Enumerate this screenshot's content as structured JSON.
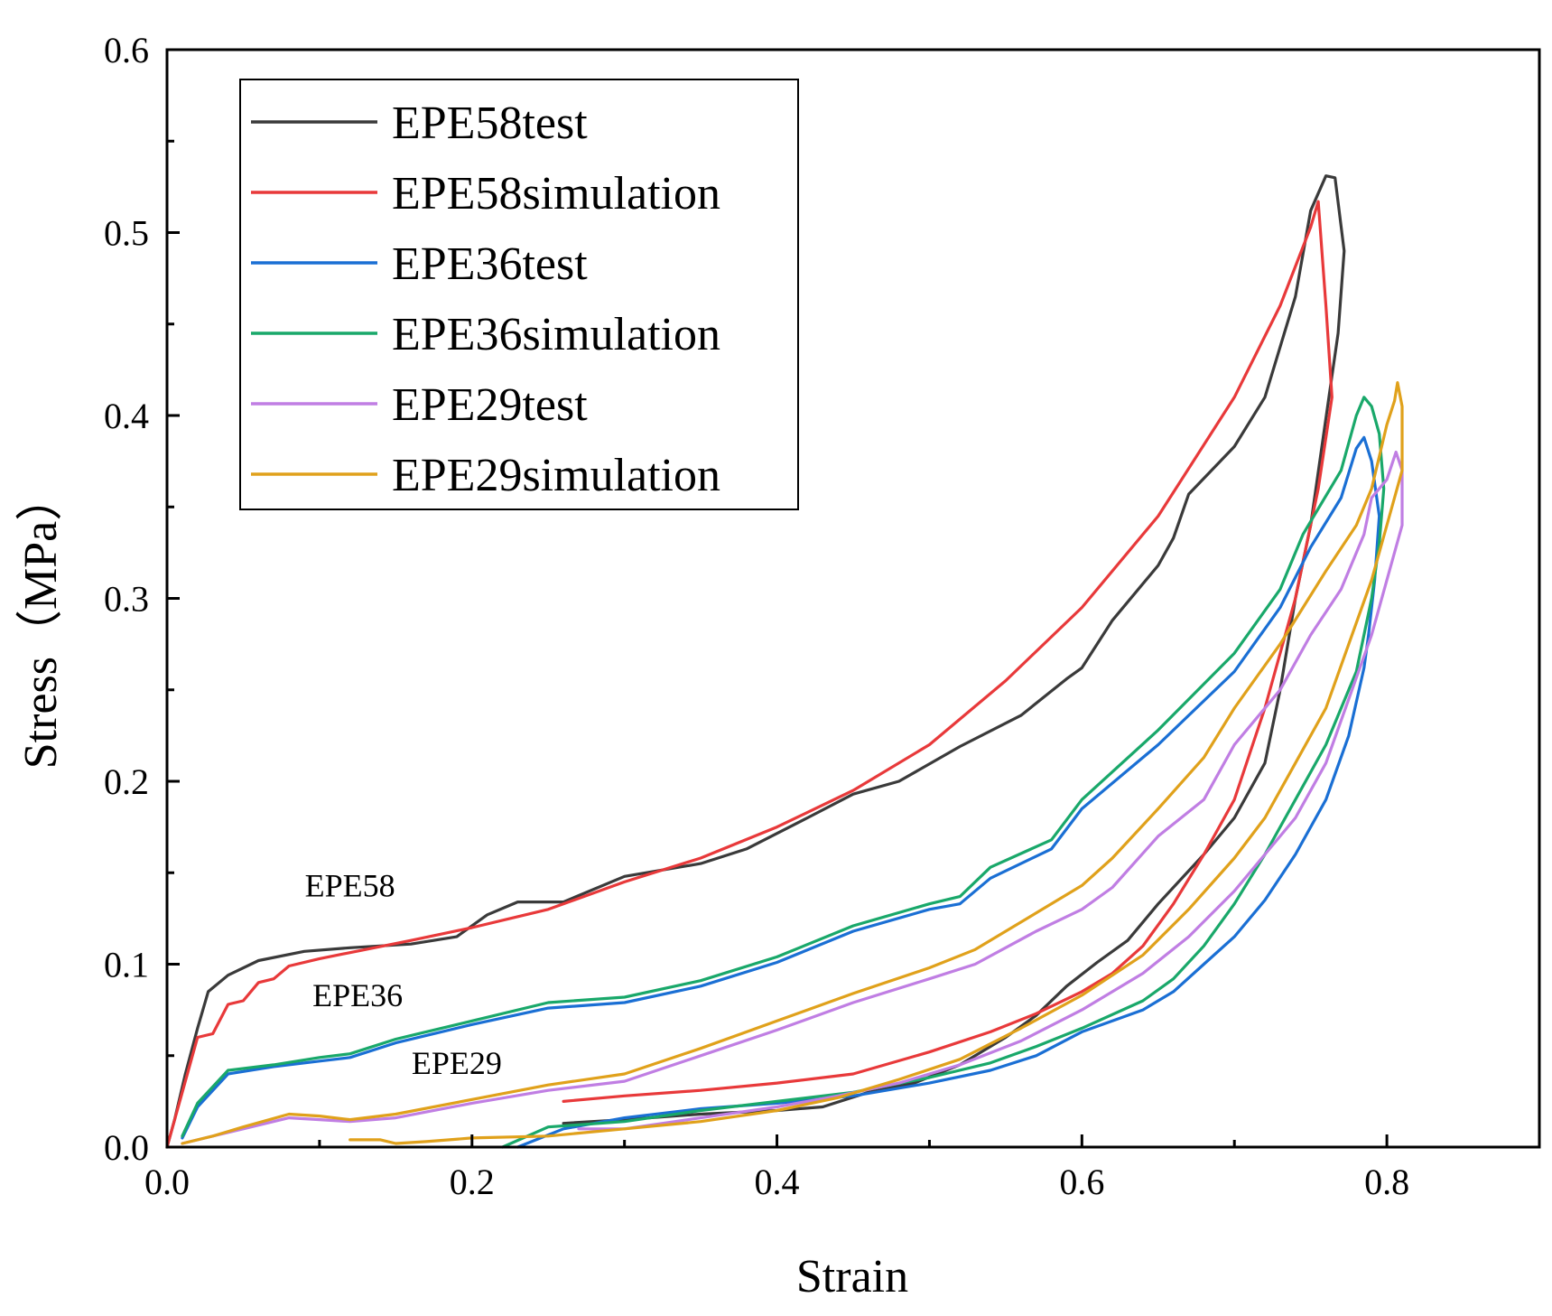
{
  "chart_data": {
    "type": "line",
    "title": "",
    "xlabel": "Strain",
    "ylabel": "Stress（MPa）",
    "xlim": [
      0,
      0.9
    ],
    "ylim": [
      0,
      0.6
    ],
    "xticks": [
      "0.0",
      "0.2",
      "0.4",
      "0.6",
      "0.8"
    ],
    "yticks": [
      "0.0",
      "0.1",
      "0.2",
      "0.3",
      "0.4",
      "0.5",
      "0.6"
    ],
    "grid": false,
    "legend_position": "top-left",
    "annotations": [
      {
        "text": "EPE58",
        "x": 0.12,
        "y": 0.137
      },
      {
        "text": "EPE36",
        "x": 0.125,
        "y": 0.077
      },
      {
        "text": "EPE29",
        "x": 0.19,
        "y": 0.04
      }
    ],
    "series": [
      {
        "name": "EPE58test",
        "color": "#3a3a3a",
        "points": [
          [
            0,
            0
          ],
          [
            0.005,
            0.015
          ],
          [
            0.012,
            0.04
          ],
          [
            0.02,
            0.065
          ],
          [
            0.027,
            0.085
          ],
          [
            0.04,
            0.094
          ],
          [
            0.06,
            0.102
          ],
          [
            0.09,
            0.107
          ],
          [
            0.12,
            0.109
          ],
          [
            0.16,
            0.111
          ],
          [
            0.19,
            0.115
          ],
          [
            0.21,
            0.127
          ],
          [
            0.23,
            0.134
          ],
          [
            0.26,
            0.134
          ],
          [
            0.3,
            0.148
          ],
          [
            0.35,
            0.155
          ],
          [
            0.38,
            0.163
          ],
          [
            0.42,
            0.18
          ],
          [
            0.45,
            0.193
          ],
          [
            0.48,
            0.2
          ],
          [
            0.52,
            0.219
          ],
          [
            0.56,
            0.236
          ],
          [
            0.59,
            0.256
          ],
          [
            0.6,
            0.262
          ],
          [
            0.62,
            0.288
          ],
          [
            0.65,
            0.318
          ],
          [
            0.66,
            0.333
          ],
          [
            0.67,
            0.357
          ],
          [
            0.7,
            0.383
          ],
          [
            0.72,
            0.41
          ],
          [
            0.74,
            0.465
          ],
          [
            0.75,
            0.512
          ],
          [
            0.76,
            0.531
          ],
          [
            0.766,
            0.53
          ],
          [
            0.772,
            0.49
          ],
          [
            0.768,
            0.445
          ],
          [
            0.762,
            0.41
          ],
          [
            0.75,
            0.34
          ],
          [
            0.74,
            0.3
          ],
          [
            0.73,
            0.25
          ],
          [
            0.72,
            0.21
          ],
          [
            0.7,
            0.18
          ],
          [
            0.68,
            0.16
          ],
          [
            0.65,
            0.133
          ],
          [
            0.63,
            0.113
          ],
          [
            0.61,
            0.101
          ],
          [
            0.59,
            0.088
          ],
          [
            0.57,
            0.072
          ],
          [
            0.55,
            0.06
          ],
          [
            0.52,
            0.045
          ],
          [
            0.49,
            0.035
          ],
          [
            0.46,
            0.03
          ],
          [
            0.43,
            0.022
          ],
          [
            0.4,
            0.02
          ],
          [
            0.35,
            0.018
          ],
          [
            0.3,
            0.015
          ],
          [
            0.26,
            0.013
          ]
        ]
      },
      {
        "name": "EPE58simulation",
        "color": "#e8393a",
        "points": [
          [
            0,
            0
          ],
          [
            0.01,
            0.03
          ],
          [
            0.02,
            0.06
          ],
          [
            0.03,
            0.062
          ],
          [
            0.04,
            0.078
          ],
          [
            0.05,
            0.08
          ],
          [
            0.06,
            0.09
          ],
          [
            0.07,
            0.092
          ],
          [
            0.08,
            0.099
          ],
          [
            0.1,
            0.103
          ],
          [
            0.13,
            0.108
          ],
          [
            0.16,
            0.113
          ],
          [
            0.2,
            0.12
          ],
          [
            0.25,
            0.13
          ],
          [
            0.3,
            0.145
          ],
          [
            0.35,
            0.158
          ],
          [
            0.4,
            0.175
          ],
          [
            0.45,
            0.195
          ],
          [
            0.5,
            0.22
          ],
          [
            0.55,
            0.255
          ],
          [
            0.6,
            0.295
          ],
          [
            0.65,
            0.345
          ],
          [
            0.7,
            0.41
          ],
          [
            0.73,
            0.46
          ],
          [
            0.75,
            0.503
          ],
          [
            0.755,
            0.517
          ],
          [
            0.76,
            0.46
          ],
          [
            0.764,
            0.41
          ],
          [
            0.755,
            0.36
          ],
          [
            0.74,
            0.3
          ],
          [
            0.72,
            0.24
          ],
          [
            0.7,
            0.19
          ],
          [
            0.68,
            0.16
          ],
          [
            0.66,
            0.133
          ],
          [
            0.64,
            0.11
          ],
          [
            0.62,
            0.095
          ],
          [
            0.6,
            0.085
          ],
          [
            0.57,
            0.073
          ],
          [
            0.54,
            0.063
          ],
          [
            0.5,
            0.052
          ],
          [
            0.45,
            0.04
          ],
          [
            0.4,
            0.035
          ],
          [
            0.35,
            0.031
          ],
          [
            0.3,
            0.028
          ],
          [
            0.26,
            0.025
          ]
        ]
      },
      {
        "name": "EPE36test",
        "color": "#1a6fd4",
        "points": [
          [
            0.01,
            0.005
          ],
          [
            0.02,
            0.022
          ],
          [
            0.04,
            0.04
          ],
          [
            0.07,
            0.044
          ],
          [
            0.1,
            0.047
          ],
          [
            0.12,
            0.049
          ],
          [
            0.15,
            0.057
          ],
          [
            0.2,
            0.067
          ],
          [
            0.25,
            0.076
          ],
          [
            0.3,
            0.079
          ],
          [
            0.35,
            0.088
          ],
          [
            0.4,
            0.101
          ],
          [
            0.45,
            0.118
          ],
          [
            0.5,
            0.13
          ],
          [
            0.52,
            0.133
          ],
          [
            0.54,
            0.147
          ],
          [
            0.58,
            0.163
          ],
          [
            0.6,
            0.185
          ],
          [
            0.65,
            0.22
          ],
          [
            0.7,
            0.26
          ],
          [
            0.73,
            0.295
          ],
          [
            0.75,
            0.328
          ],
          [
            0.77,
            0.355
          ],
          [
            0.78,
            0.382
          ],
          [
            0.785,
            0.388
          ],
          [
            0.79,
            0.375
          ],
          [
            0.795,
            0.345
          ],
          [
            0.792,
            0.31
          ],
          [
            0.788,
            0.28
          ],
          [
            0.785,
            0.262
          ],
          [
            0.775,
            0.225
          ],
          [
            0.76,
            0.19
          ],
          [
            0.74,
            0.16
          ],
          [
            0.72,
            0.135
          ],
          [
            0.7,
            0.115
          ],
          [
            0.68,
            0.1
          ],
          [
            0.66,
            0.085
          ],
          [
            0.64,
            0.075
          ],
          [
            0.6,
            0.063
          ],
          [
            0.57,
            0.05
          ],
          [
            0.54,
            0.042
          ],
          [
            0.5,
            0.035
          ],
          [
            0.45,
            0.028
          ],
          [
            0.4,
            0.024
          ],
          [
            0.35,
            0.021
          ],
          [
            0.3,
            0.016
          ],
          [
            0.26,
            0.01
          ],
          [
            0.23,
            0.0
          ]
        ]
      },
      {
        "name": "EPE36simulation",
        "color": "#19a86a",
        "points": [
          [
            0.01,
            0.006
          ],
          [
            0.02,
            0.024
          ],
          [
            0.04,
            0.042
          ],
          [
            0.07,
            0.045
          ],
          [
            0.1,
            0.049
          ],
          [
            0.12,
            0.051
          ],
          [
            0.15,
            0.059
          ],
          [
            0.2,
            0.069
          ],
          [
            0.25,
            0.079
          ],
          [
            0.3,
            0.082
          ],
          [
            0.35,
            0.091
          ],
          [
            0.4,
            0.104
          ],
          [
            0.45,
            0.121
          ],
          [
            0.5,
            0.133
          ],
          [
            0.52,
            0.137
          ],
          [
            0.54,
            0.153
          ],
          [
            0.58,
            0.168
          ],
          [
            0.6,
            0.19
          ],
          [
            0.65,
            0.228
          ],
          [
            0.7,
            0.27
          ],
          [
            0.73,
            0.305
          ],
          [
            0.745,
            0.335
          ],
          [
            0.77,
            0.37
          ],
          [
            0.78,
            0.4
          ],
          [
            0.785,
            0.41
          ],
          [
            0.79,
            0.405
          ],
          [
            0.795,
            0.39
          ],
          [
            0.798,
            0.36
          ],
          [
            0.795,
            0.33
          ],
          [
            0.79,
            0.3
          ],
          [
            0.78,
            0.26
          ],
          [
            0.76,
            0.22
          ],
          [
            0.74,
            0.19
          ],
          [
            0.72,
            0.16
          ],
          [
            0.7,
            0.133
          ],
          [
            0.68,
            0.11
          ],
          [
            0.66,
            0.092
          ],
          [
            0.64,
            0.08
          ],
          [
            0.6,
            0.065
          ],
          [
            0.57,
            0.055
          ],
          [
            0.54,
            0.046
          ],
          [
            0.5,
            0.038
          ],
          [
            0.45,
            0.03
          ],
          [
            0.4,
            0.025
          ],
          [
            0.35,
            0.02
          ],
          [
            0.3,
            0.014
          ],
          [
            0.25,
            0.011
          ],
          [
            0.22,
            0.0
          ]
        ]
      },
      {
        "name": "EPE29test",
        "color": "#c07ee3",
        "points": [
          [
            0.01,
            0.002
          ],
          [
            0.03,
            0.006
          ],
          [
            0.05,
            0.01
          ],
          [
            0.08,
            0.016
          ],
          [
            0.1,
            0.015
          ],
          [
            0.12,
            0.014
          ],
          [
            0.15,
            0.016
          ],
          [
            0.2,
            0.024
          ],
          [
            0.25,
            0.031
          ],
          [
            0.3,
            0.036
          ],
          [
            0.35,
            0.05
          ],
          [
            0.4,
            0.064
          ],
          [
            0.45,
            0.079
          ],
          [
            0.5,
            0.092
          ],
          [
            0.53,
            0.1
          ],
          [
            0.57,
            0.118
          ],
          [
            0.6,
            0.13
          ],
          [
            0.62,
            0.142
          ],
          [
            0.65,
            0.17
          ],
          [
            0.68,
            0.19
          ],
          [
            0.7,
            0.22
          ],
          [
            0.73,
            0.25
          ],
          [
            0.75,
            0.28
          ],
          [
            0.77,
            0.305
          ],
          [
            0.785,
            0.335
          ],
          [
            0.79,
            0.355
          ],
          [
            0.8,
            0.365
          ],
          [
            0.806,
            0.38
          ],
          [
            0.81,
            0.37
          ],
          [
            0.81,
            0.34
          ],
          [
            0.8,
            0.31
          ],
          [
            0.79,
            0.28
          ],
          [
            0.775,
            0.245
          ],
          [
            0.76,
            0.21
          ],
          [
            0.74,
            0.18
          ],
          [
            0.72,
            0.16
          ],
          [
            0.7,
            0.14
          ],
          [
            0.67,
            0.115
          ],
          [
            0.64,
            0.095
          ],
          [
            0.6,
            0.075
          ],
          [
            0.56,
            0.058
          ],
          [
            0.52,
            0.045
          ],
          [
            0.48,
            0.035
          ],
          [
            0.44,
            0.028
          ],
          [
            0.4,
            0.022
          ],
          [
            0.35,
            0.016
          ],
          [
            0.3,
            0.01
          ],
          [
            0.27,
            0.01
          ]
        ]
      },
      {
        "name": "EPE29simulation",
        "color": "#e0a11b",
        "points": [
          [
            0.01,
            0.002
          ],
          [
            0.03,
            0.006
          ],
          [
            0.05,
            0.011
          ],
          [
            0.08,
            0.018
          ],
          [
            0.1,
            0.017
          ],
          [
            0.12,
            0.015
          ],
          [
            0.15,
            0.018
          ],
          [
            0.2,
            0.026
          ],
          [
            0.25,
            0.034
          ],
          [
            0.3,
            0.04
          ],
          [
            0.35,
            0.054
          ],
          [
            0.4,
            0.069
          ],
          [
            0.45,
            0.084
          ],
          [
            0.5,
            0.098
          ],
          [
            0.53,
            0.108
          ],
          [
            0.57,
            0.128
          ],
          [
            0.6,
            0.143
          ],
          [
            0.62,
            0.158
          ],
          [
            0.65,
            0.185
          ],
          [
            0.68,
            0.213
          ],
          [
            0.7,
            0.24
          ],
          [
            0.73,
            0.275
          ],
          [
            0.76,
            0.315
          ],
          [
            0.78,
            0.34
          ],
          [
            0.79,
            0.36
          ],
          [
            0.8,
            0.395
          ],
          [
            0.805,
            0.408
          ],
          [
            0.807,
            0.418
          ],
          [
            0.81,
            0.405
          ],
          [
            0.81,
            0.37
          ],
          [
            0.8,
            0.34
          ],
          [
            0.79,
            0.31
          ],
          [
            0.775,
            0.275
          ],
          [
            0.76,
            0.24
          ],
          [
            0.74,
            0.21
          ],
          [
            0.72,
            0.18
          ],
          [
            0.7,
            0.158
          ],
          [
            0.67,
            0.13
          ],
          [
            0.64,
            0.105
          ],
          [
            0.6,
            0.083
          ],
          [
            0.56,
            0.065
          ],
          [
            0.52,
            0.048
          ],
          [
            0.48,
            0.037
          ],
          [
            0.44,
            0.027
          ],
          [
            0.4,
            0.02
          ],
          [
            0.35,
            0.014
          ],
          [
            0.3,
            0.01
          ],
          [
            0.25,
            0.006
          ],
          [
            0.2,
            0.005
          ],
          [
            0.17,
            0.003
          ],
          [
            0.15,
            0.002
          ],
          [
            0.14,
            0.004
          ],
          [
            0.12,
            0.004
          ]
        ]
      }
    ]
  }
}
